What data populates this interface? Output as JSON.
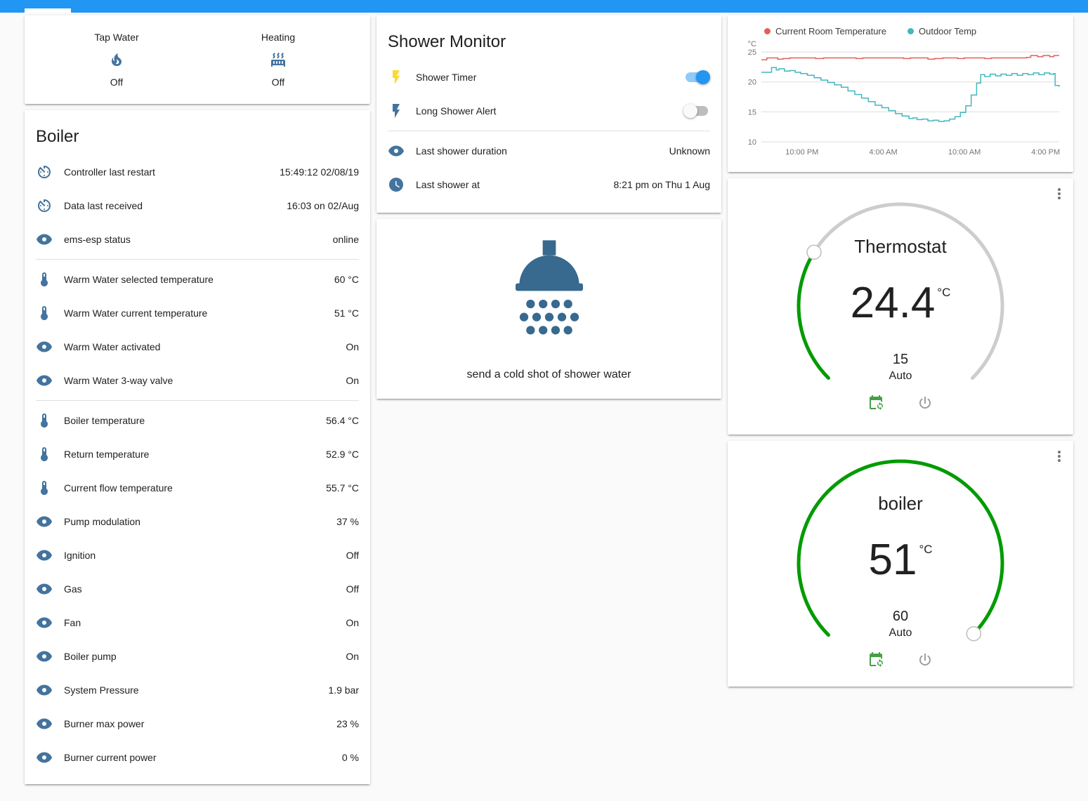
{
  "colors": {
    "header_bar": "#2196f3",
    "entity_icon": "#44739e",
    "toggle_on": "#2196f3",
    "dial_active": "#009b00",
    "dial_inactive": "#cdcdcd",
    "shower_icon": "#38698e",
    "calendar_icon": "#43a047",
    "power_icon": "#9e9e9e",
    "menu_icon": "#757575"
  },
  "glance": {
    "items": [
      {
        "label": "Tap Water",
        "icon": "fire",
        "state": "Off"
      },
      {
        "label": "Heating",
        "icon": "radiator",
        "state": "Off"
      }
    ]
  },
  "boiler_card": {
    "title": "Boiler",
    "sections": [
      [
        {
          "icon": "av-timer",
          "name": "Controller last restart",
          "value": "15:49:12 02/08/19"
        },
        {
          "icon": "av-timer",
          "name": "Data last received",
          "value": "16:03 on 02/Aug"
        },
        {
          "icon": "eye",
          "name": "ems-esp status",
          "value": "online"
        }
      ],
      [
        {
          "icon": "thermometer",
          "name": "Warm Water selected temperature",
          "value": "60 °C"
        },
        {
          "icon": "thermometer",
          "name": "Warm Water current temperature",
          "value": "51 °C"
        },
        {
          "icon": "eye",
          "name": "Warm Water activated",
          "value": "On"
        },
        {
          "icon": "eye",
          "name": "Warm Water 3-way valve",
          "value": "On"
        }
      ],
      [
        {
          "icon": "thermometer",
          "name": "Boiler temperature",
          "value": "56.4 °C"
        },
        {
          "icon": "thermometer",
          "name": "Return temperature",
          "value": "52.9 °C"
        },
        {
          "icon": "thermometer",
          "name": "Current flow temperature",
          "value": "55.7 °C"
        },
        {
          "icon": "eye",
          "name": "Pump modulation",
          "value": "37 %"
        },
        {
          "icon": "eye",
          "name": "Ignition",
          "value": "Off"
        },
        {
          "icon": "eye",
          "name": "Gas",
          "value": "Off"
        },
        {
          "icon": "eye",
          "name": "Fan",
          "value": "On"
        },
        {
          "icon": "eye",
          "name": "Boiler pump",
          "value": "On"
        },
        {
          "icon": "eye",
          "name": "System Pressure",
          "value": "1.9 bar"
        },
        {
          "icon": "eye",
          "name": "Burner max power",
          "value": "23 %"
        },
        {
          "icon": "eye",
          "name": "Burner current power",
          "value": "0 %"
        }
      ]
    ]
  },
  "shower_monitor": {
    "title": "Shower Monitor",
    "toggles": [
      {
        "icon": "flash",
        "icon_color": "#fdd835",
        "name": "Shower Timer",
        "on": true
      },
      {
        "icon": "flash",
        "icon_color": "#44739e",
        "name": "Long Shower Alert",
        "on": false
      }
    ],
    "info_rows": [
      {
        "icon": "eye",
        "name": "Last shower duration",
        "value": "Unknown"
      },
      {
        "icon": "clock",
        "name": "Last shower at",
        "value": "8:21 pm on Thu 1 Aug"
      }
    ]
  },
  "shower_picture": {
    "caption": "send a cold shot of shower water"
  },
  "chart_data": {
    "type": "line",
    "title": "",
    "ylabel": "°C",
    "xlabel": "",
    "grid": true,
    "legend_position": "top",
    "x_range_hours": [
      0,
      22
    ],
    "y_range": [
      10,
      25
    ],
    "yticks": [
      {
        "v": 25,
        "label": "25"
      },
      {
        "v": 20,
        "label": "20"
      },
      {
        "v": 15,
        "label": "15"
      },
      {
        "v": 10,
        "label": "10"
      }
    ],
    "xticks": [
      {
        "h": 3,
        "label": "10:00 PM"
      },
      {
        "h": 9,
        "label": "4:00 AM"
      },
      {
        "h": 15,
        "label": "10:00 AM"
      },
      {
        "h": 21,
        "label": "4:00 PM"
      }
    ],
    "series": [
      {
        "name": "Current Room Temperature",
        "color": "#e2605c",
        "points": [
          [
            0,
            23.7
          ],
          [
            0.4,
            24
          ],
          [
            1.1,
            24
          ],
          [
            1.2,
            23.8
          ],
          [
            1.6,
            23.9
          ],
          [
            2.1,
            24
          ],
          [
            3,
            24
          ],
          [
            4,
            23.9
          ],
          [
            4.6,
            24
          ],
          [
            6,
            24
          ],
          [
            7,
            23.9
          ],
          [
            7.5,
            24
          ],
          [
            9,
            24
          ],
          [
            10.5,
            23.9
          ],
          [
            11,
            24
          ],
          [
            12.3,
            23.8
          ],
          [
            12.8,
            23.9
          ],
          [
            13.4,
            24
          ],
          [
            14.5,
            23.9
          ],
          [
            15,
            24
          ],
          [
            16,
            24
          ],
          [
            16.5,
            23.9
          ],
          [
            17,
            24
          ],
          [
            18,
            24
          ],
          [
            19,
            24
          ],
          [
            19.6,
            24.1
          ],
          [
            19.9,
            24.4
          ],
          [
            20.4,
            24.2
          ],
          [
            20.8,
            24.4
          ],
          [
            21.3,
            24.2
          ],
          [
            21.6,
            24.4
          ],
          [
            22,
            24.4
          ]
        ]
      },
      {
        "name": "Outdoor Temp",
        "color": "#45b6be",
        "points": [
          [
            0,
            21.6
          ],
          [
            0.7,
            21.6
          ],
          [
            0.75,
            22.4
          ],
          [
            1.1,
            22
          ],
          [
            1.3,
            22.2
          ],
          [
            1.7,
            21.8
          ],
          [
            2.1,
            21.9
          ],
          [
            2.5,
            21.6
          ],
          [
            2.9,
            21.4
          ],
          [
            3.4,
            21.1
          ],
          [
            3.9,
            20.7
          ],
          [
            4.4,
            20.3
          ],
          [
            4.9,
            19.9
          ],
          [
            5.4,
            19.5
          ],
          [
            5.9,
            19.1
          ],
          [
            6.4,
            18.5
          ],
          [
            6.9,
            17.9
          ],
          [
            7.4,
            17.3
          ],
          [
            7.9,
            16.7
          ],
          [
            8.4,
            16.1
          ],
          [
            8.9,
            15.7
          ],
          [
            9.4,
            15.2
          ],
          [
            9.9,
            14.7
          ],
          [
            10.4,
            14.3
          ],
          [
            10.9,
            13.9
          ],
          [
            11.2,
            14
          ],
          [
            11.5,
            13.7
          ],
          [
            11.9,
            13.8
          ],
          [
            12.3,
            13.5
          ],
          [
            12.7,
            13.6
          ],
          [
            13.1,
            13.4
          ],
          [
            13.5,
            13.5
          ],
          [
            13.9,
            13.8
          ],
          [
            14.3,
            14.2
          ],
          [
            14.7,
            14.9
          ],
          [
            15.1,
            16
          ],
          [
            15.5,
            17.8
          ],
          [
            15.9,
            19.8
          ],
          [
            16.2,
            21.2
          ],
          [
            16.5,
            20.9
          ],
          [
            16.9,
            21.3
          ],
          [
            17.3,
            21
          ],
          [
            17.7,
            21.3
          ],
          [
            18.1,
            21.1
          ],
          [
            18.5,
            21.4
          ],
          [
            18.9,
            21.1
          ],
          [
            19.3,
            21.4
          ],
          [
            19.7,
            21.2
          ],
          [
            20.1,
            21.5
          ],
          [
            20.5,
            21.2
          ],
          [
            20.9,
            21.5
          ],
          [
            21.3,
            21.3
          ],
          [
            21.6,
            21.4
          ],
          [
            21.7,
            19.4
          ],
          [
            22,
            19.2
          ]
        ]
      }
    ]
  },
  "thermostat": {
    "title": "Thermostat",
    "value": "24.4",
    "unit": "°C",
    "target": "15",
    "mode": "Auto"
  },
  "boiler_gauge": {
    "title": "boiler",
    "value": "51",
    "unit": "°C",
    "target": "60",
    "mode": "Auto"
  }
}
